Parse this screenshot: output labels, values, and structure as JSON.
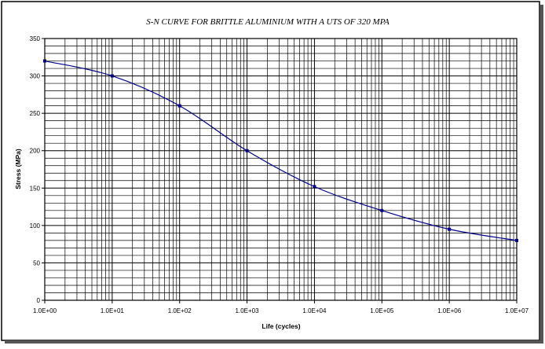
{
  "chart_data": {
    "type": "line",
    "title": "S-N CURVE FOR BRITTLE ALUMINIUM WITH A UTS OF 320 MPA",
    "xlabel": "Life (cycles)",
    "ylabel": "Stress (MPa)",
    "x_scale": "log",
    "xlim": [
      1,
      10000000
    ],
    "ylim": [
      0,
      350
    ],
    "x_ticks": [
      1,
      10,
      100,
      1000,
      10000,
      100000,
      1000000,
      10000000
    ],
    "x_tick_labels": [
      "1.0E+00",
      "1.0E+01",
      "1.0E+02",
      "1.0E+03",
      "1.0E+04",
      "1.0E+05",
      "1.0E+06",
      "1.0E+07"
    ],
    "y_ticks": [
      0,
      50,
      100,
      150,
      200,
      250,
      300,
      350
    ],
    "y_tick_labels": [
      "0",
      "50",
      "100",
      "150",
      "200",
      "250",
      "300",
      "350"
    ],
    "grid": true,
    "minor_grid": true,
    "legend": false,
    "line_color": "#00008b",
    "series": [
      {
        "x": [
          1,
          10,
          100,
          1000,
          10000,
          100000,
          1000000,
          10000000
        ],
        "y": [
          320,
          300,
          260,
          200,
          152,
          120,
          95,
          80
        ]
      }
    ]
  }
}
